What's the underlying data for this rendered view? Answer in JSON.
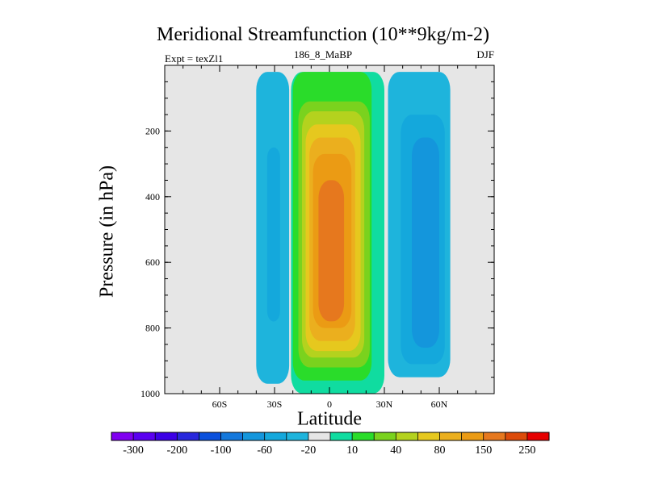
{
  "chart_data": {
    "type": "contour",
    "title": "Meridional Streamfunction (10**9kg/m-2)",
    "subtitle_left": "Expt = texZl1",
    "subtitle_center": "186_8_MaBP",
    "subtitle_right": "DJF",
    "xlabel": "Latitude",
    "ylabel": "Pressure (in hPa)",
    "xlim": [
      -90,
      90
    ],
    "ylim": [
      1000,
      0
    ],
    "x_ticks": [
      {
        "value": -60,
        "label": "60S"
      },
      {
        "value": -30,
        "label": "30S"
      },
      {
        "value": 0,
        "label": "0"
      },
      {
        "value": 30,
        "label": "30N"
      },
      {
        "value": 60,
        "label": "60N"
      }
    ],
    "y_ticks": [
      {
        "value": 200,
        "label": "200"
      },
      {
        "value": 400,
        "label": "400"
      },
      {
        "value": 600,
        "label": "600"
      },
      {
        "value": 800,
        "label": "800"
      },
      {
        "value": 1000,
        "label": "1000"
      }
    ],
    "colorbar": {
      "levels": [
        -300,
        -250,
        -200,
        -150,
        -100,
        -80,
        -60,
        -40,
        -20,
        -10,
        10,
        20,
        40,
        60,
        80,
        100,
        150,
        200,
        250,
        300
      ],
      "labels": [
        "-300",
        "-200",
        "-100",
        "-60",
        "-20",
        "10",
        "40",
        "80",
        "150",
        "250"
      ],
      "colors": [
        "#8000f0",
        "#5a00f0",
        "#3c00e6",
        "#2828dc",
        "#0a50dc",
        "#1478dc",
        "#1496dc",
        "#14a8dc",
        "#1eb4dc",
        "#e6e6e6",
        "#10dca0",
        "#2adc2a",
        "#7ad21e",
        "#b4d21e",
        "#e6c81e",
        "#ebaf1e",
        "#eb9b14",
        "#e6781e",
        "#dc4b0a",
        "#e60000"
      ]
    },
    "regions": [
      {
        "name": "sh-cell-outer",
        "value_range": [
          -20,
          -10
        ],
        "lat_range": [
          -40,
          -22
        ],
        "p_range": [
          20,
          970
        ]
      },
      {
        "name": "sh-cell-core",
        "value_range": [
          -40,
          -20
        ],
        "lat_range": [
          -34,
          -27
        ],
        "p_range": [
          250,
          780
        ]
      },
      {
        "name": "tropical-cell-10",
        "value_range": [
          10,
          20
        ],
        "lat_range": [
          -21,
          30
        ],
        "p_range": [
          20,
          1000
        ]
      },
      {
        "name": "tropical-cell-20",
        "value_range": [
          20,
          40
        ],
        "lat_range": [
          -20,
          23
        ],
        "p_range": [
          20,
          960
        ]
      },
      {
        "name": "tropical-cell-40",
        "value_range": [
          40,
          60
        ],
        "lat_range": [
          -17,
          22
        ],
        "p_range": [
          110,
          920
        ]
      },
      {
        "name": "tropical-cell-60",
        "value_range": [
          60,
          80
        ],
        "lat_range": [
          -15,
          19
        ],
        "p_range": [
          140,
          890
        ]
      },
      {
        "name": "tropical-cell-80",
        "value_range": [
          80,
          100
        ],
        "lat_range": [
          -13,
          17
        ],
        "p_range": [
          180,
          870
        ]
      },
      {
        "name": "tropical-cell-100",
        "value_range": [
          100,
          150
        ],
        "lat_range": [
          -11,
          14
        ],
        "p_range": [
          220,
          840
        ]
      },
      {
        "name": "tropical-cell-150",
        "value_range": [
          150,
          200
        ],
        "lat_range": [
          -9,
          12
        ],
        "p_range": [
          270,
          800
        ]
      },
      {
        "name": "tropical-cell-200",
        "value_range": [
          200,
          250
        ],
        "lat_range": [
          -6,
          8
        ],
        "p_range": [
          350,
          780
        ]
      },
      {
        "name": "nh-cell-outer",
        "value_range": [
          -20,
          -10
        ],
        "lat_range": [
          32,
          66
        ],
        "p_range": [
          20,
          950
        ]
      },
      {
        "name": "nh-cell-20",
        "value_range": [
          -40,
          -20
        ],
        "lat_range": [
          39,
          63
        ],
        "p_range": [
          150,
          910
        ]
      },
      {
        "name": "nh-cell-40",
        "value_range": [
          -60,
          -40
        ],
        "lat_range": [
          45,
          60
        ],
        "p_range": [
          220,
          860
        ]
      }
    ]
  }
}
